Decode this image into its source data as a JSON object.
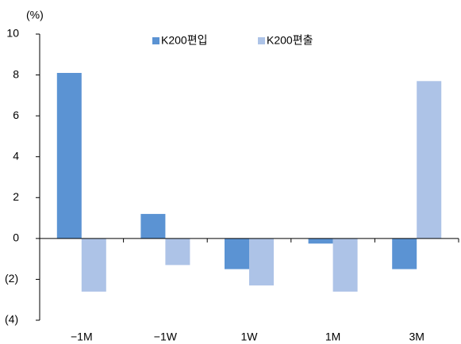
{
  "chart_data": {
    "type": "bar",
    "y_label": "(%)",
    "categories": [
      "−1M",
      "−1W",
      "1W",
      "1M",
      "3M"
    ],
    "series": [
      {
        "name": "K200편입",
        "color": "#5b93d3",
        "values": [
          8.1,
          1.2,
          -1.5,
          -0.25,
          -1.5
        ]
      },
      {
        "name": "K200편출",
        "color": "#adc3e7",
        "values": [
          -2.6,
          -1.3,
          -2.3,
          -2.6,
          7.7
        ]
      }
    ],
    "ylim": [
      -4,
      10
    ],
    "yticks": [
      {
        "value": -4,
        "label": "(4)"
      },
      {
        "value": -2,
        "label": "(2)"
      },
      0,
      2,
      4,
      6,
      8,
      10
    ],
    "legend": "top"
  }
}
